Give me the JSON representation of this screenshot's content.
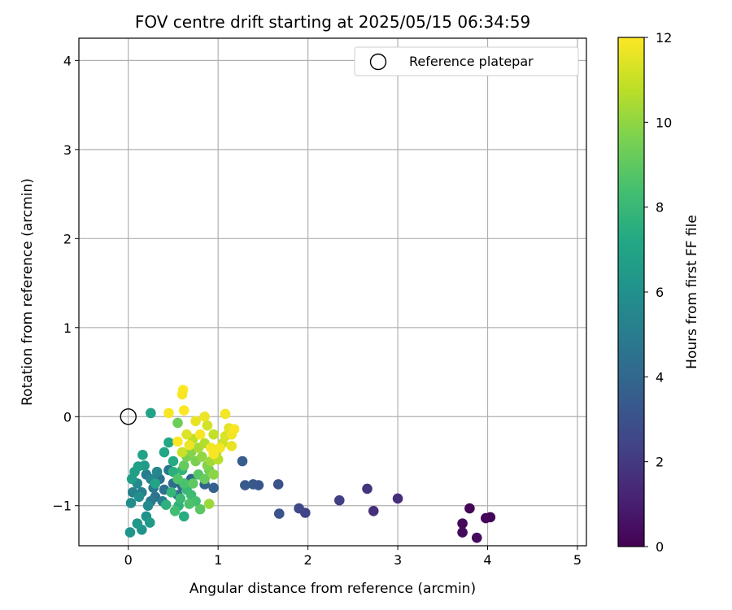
{
  "chart_data": {
    "type": "scatter",
    "title": "FOV centre drift starting at 2025/05/15 06:34:59",
    "xlabel": "Angular distance from reference (arcmin)",
    "ylabel": "Rotation from reference (arcmin)",
    "xlim": [
      -0.55,
      5.1
    ],
    "ylim": [
      -1.45,
      4.25
    ],
    "xticks": [
      "0",
      "1",
      "2",
      "3",
      "4",
      "5"
    ],
    "yticks": [
      "−1",
      "0",
      "1",
      "2",
      "3",
      "4"
    ],
    "grid": true,
    "legend": {
      "position": "top-right",
      "entries": [
        "Reference platepar"
      ]
    },
    "reference_point": {
      "x": 0,
      "y": 0,
      "label": "Reference platepar"
    },
    "colorbar": {
      "label": "Hours from first FF file",
      "colormap": "viridis",
      "range": [
        0,
        12
      ],
      "ticks": [
        "0",
        "2",
        "4",
        "6",
        "8",
        "10",
        "12"
      ]
    },
    "points": [
      {
        "x": 3.8,
        "y": -1.03,
        "hours": 0.1
      },
      {
        "x": 4.03,
        "y": -1.13,
        "hours": 0.15
      },
      {
        "x": 3.98,
        "y": -1.14,
        "hours": 0.2
      },
      {
        "x": 3.72,
        "y": -1.2,
        "hours": 0.25
      },
      {
        "x": 3.72,
        "y": -1.3,
        "hours": 0.3
      },
      {
        "x": 3.88,
        "y": -1.36,
        "hours": 0.35
      },
      {
        "x": 3.0,
        "y": -0.92,
        "hours": 1.5
      },
      {
        "x": 2.73,
        "y": -1.06,
        "hours": 1.6
      },
      {
        "x": 2.66,
        "y": -0.81,
        "hours": 1.8
      },
      {
        "x": 2.35,
        "y": -0.94,
        "hours": 2.2
      },
      {
        "x": 1.97,
        "y": -1.08,
        "hours": 2.4
      },
      {
        "x": 1.9,
        "y": -1.03,
        "hours": 2.6
      },
      {
        "x": 1.67,
        "y": -0.76,
        "hours": 3.0
      },
      {
        "x": 1.68,
        "y": -1.09,
        "hours": 3.1
      },
      {
        "x": 1.45,
        "y": -0.77,
        "hours": 3.2
      },
      {
        "x": 1.39,
        "y": -0.76,
        "hours": 3.3
      },
      {
        "x": 1.3,
        "y": -0.77,
        "hours": 3.4
      },
      {
        "x": 1.27,
        "y": -0.5,
        "hours": 3.5
      },
      {
        "x": 0.95,
        "y": -0.8,
        "hours": 3.7
      },
      {
        "x": 0.85,
        "y": -0.76,
        "hours": 3.8
      },
      {
        "x": 0.7,
        "y": -0.7,
        "hours": 4.0
      },
      {
        "x": 0.6,
        "y": -0.78,
        "hours": 4.1
      },
      {
        "x": 0.5,
        "y": -0.75,
        "hours": 4.2
      },
      {
        "x": 0.55,
        "y": -0.88,
        "hours": 4.3
      },
      {
        "x": 0.4,
        "y": -0.82,
        "hours": 4.4
      },
      {
        "x": 0.35,
        "y": -0.7,
        "hours": 4.5
      },
      {
        "x": 0.3,
        "y": -0.9,
        "hours": 4.6
      },
      {
        "x": 0.45,
        "y": -0.6,
        "hours": 4.7
      },
      {
        "x": 0.28,
        "y": -0.8,
        "hours": 4.8
      },
      {
        "x": 0.25,
        "y": -0.95,
        "hours": 4.9
      },
      {
        "x": 0.2,
        "y": -0.65,
        "hours": 5.0
      },
      {
        "x": 0.38,
        "y": -0.95,
        "hours": 5.1
      },
      {
        "x": 0.15,
        "y": -0.85,
        "hours": 5.2
      },
      {
        "x": 0.05,
        "y": -0.85,
        "hours": 5.3
      },
      {
        "x": 0.25,
        "y": -0.7,
        "hours": 5.4
      },
      {
        "x": 0.32,
        "y": -0.62,
        "hours": 5.5
      },
      {
        "x": 0.1,
        "y": -0.75,
        "hours": 5.6
      },
      {
        "x": 0.22,
        "y": -1.0,
        "hours": 5.7
      },
      {
        "x": 0.03,
        "y": -0.97,
        "hours": 5.8
      },
      {
        "x": 0.12,
        "y": -0.9,
        "hours": 5.9
      },
      {
        "x": 0.2,
        "y": -1.12,
        "hours": 6.0
      },
      {
        "x": 0.15,
        "y": -1.27,
        "hours": 6.1
      },
      {
        "x": 0.02,
        "y": -1.3,
        "hours": 6.2
      },
      {
        "x": 0.1,
        "y": -1.2,
        "hours": 6.3
      },
      {
        "x": 0.24,
        "y": -1.19,
        "hours": 6.4
      },
      {
        "x": 0.18,
        "y": -0.55,
        "hours": 6.5
      },
      {
        "x": 0.04,
        "y": -0.7,
        "hours": 6.6
      },
      {
        "x": 0.07,
        "y": -0.62,
        "hours": 6.7
      },
      {
        "x": 0.11,
        "y": -0.56,
        "hours": 6.8
      },
      {
        "x": 0.16,
        "y": -0.43,
        "hours": 6.9
      },
      {
        "x": 0.25,
        "y": 0.04,
        "hours": 6.9
      },
      {
        "x": 0.3,
        "y": -0.75,
        "hours": 7.0
      },
      {
        "x": 0.4,
        "y": -0.4,
        "hours": 7.1
      },
      {
        "x": 0.45,
        "y": -0.29,
        "hours": 7.2
      },
      {
        "x": 0.5,
        "y": -0.5,
        "hours": 7.3
      },
      {
        "x": 0.62,
        "y": -1.12,
        "hours": 7.4
      },
      {
        "x": 0.5,
        "y": -0.62,
        "hours": 7.5
      },
      {
        "x": 0.42,
        "y": -0.99,
        "hours": 7.6
      },
      {
        "x": 0.56,
        "y": -1.0,
        "hours": 7.7
      },
      {
        "x": 0.6,
        "y": -0.6,
        "hours": 7.8
      },
      {
        "x": 0.48,
        "y": -0.85,
        "hours": 7.9
      },
      {
        "x": 0.65,
        "y": -0.82,
        "hours": 8.0
      },
      {
        "x": 0.58,
        "y": -0.92,
        "hours": 8.1
      },
      {
        "x": 0.7,
        "y": -0.88,
        "hours": 8.2
      },
      {
        "x": 0.52,
        "y": -1.06,
        "hours": 8.3
      },
      {
        "x": 0.75,
        "y": -0.95,
        "hours": 8.4
      },
      {
        "x": 0.62,
        "y": -0.75,
        "hours": 8.5
      },
      {
        "x": 0.68,
        "y": -0.98,
        "hours": 8.6
      },
      {
        "x": 0.55,
        "y": -0.7,
        "hours": 8.7
      },
      {
        "x": 0.78,
        "y": -0.65,
        "hours": 8.8
      },
      {
        "x": 0.8,
        "y": -1.04,
        "hours": 8.9
      },
      {
        "x": 0.72,
        "y": -0.75,
        "hours": 9.0
      },
      {
        "x": 0.62,
        "y": -0.55,
        "hours": 9.1
      },
      {
        "x": 0.85,
        "y": -0.7,
        "hours": 9.2
      },
      {
        "x": 0.55,
        "y": -0.07,
        "hours": 9.3
      },
      {
        "x": 0.9,
        "y": -0.6,
        "hours": 9.4
      },
      {
        "x": 0.65,
        "y": -0.45,
        "hours": 9.5
      },
      {
        "x": 0.75,
        "y": -0.5,
        "hours": 9.6
      },
      {
        "x": 0.88,
        "y": -0.55,
        "hours": 9.7
      },
      {
        "x": 0.7,
        "y": -0.4,
        "hours": 9.8
      },
      {
        "x": 0.95,
        "y": -0.65,
        "hours": 9.9
      },
      {
        "x": 0.82,
        "y": -0.45,
        "hours": 10.0
      },
      {
        "x": 0.9,
        "y": -0.98,
        "hours": 10.2
      },
      {
        "x": 0.92,
        "y": -0.5,
        "hours": 10.3
      },
      {
        "x": 0.78,
        "y": -0.35,
        "hours": 10.4
      },
      {
        "x": 0.98,
        "y": -0.4,
        "hours": 10.5
      },
      {
        "x": 0.85,
        "y": -0.3,
        "hours": 10.6
      },
      {
        "x": 1.0,
        "y": -0.48,
        "hours": 10.7
      },
      {
        "x": 0.72,
        "y": -0.25,
        "hours": 10.8
      },
      {
        "x": 0.95,
        "y": -0.2,
        "hours": 10.9
      },
      {
        "x": 0.6,
        "y": -0.4,
        "hours": 11.0
      },
      {
        "x": 1.05,
        "y": -0.3,
        "hours": 11.1
      },
      {
        "x": 0.88,
        "y": -0.1,
        "hours": 11.2
      },
      {
        "x": 1.08,
        "y": -0.22,
        "hours": 11.3
      },
      {
        "x": 0.65,
        "y": -0.2,
        "hours": 11.4
      },
      {
        "x": 1.12,
        "y": -0.13,
        "hours": 11.5
      },
      {
        "x": 0.75,
        "y": -0.05,
        "hours": 11.6
      },
      {
        "x": 1.15,
        "y": -0.2,
        "hours": 11.7
      },
      {
        "x": 0.92,
        "y": -0.35,
        "hours": 11.8
      },
      {
        "x": 1.18,
        "y": -0.14,
        "hours": 11.9
      },
      {
        "x": 0.55,
        "y": -0.28,
        "hours": 12.0
      },
      {
        "x": 0.62,
        "y": 0.07,
        "hours": 12.0
      },
      {
        "x": 0.61,
        "y": 0.3,
        "hours": 12.0
      },
      {
        "x": 0.6,
        "y": 0.25,
        "hours": 11.9
      },
      {
        "x": 0.45,
        "y": 0.04,
        "hours": 11.9
      },
      {
        "x": 1.08,
        "y": 0.03,
        "hours": 11.8
      },
      {
        "x": 0.85,
        "y": 0.0,
        "hours": 11.7
      },
      {
        "x": 1.15,
        "y": -0.33,
        "hours": 11.6
      },
      {
        "x": 1.02,
        "y": -0.35,
        "hours": 11.8
      },
      {
        "x": 0.95,
        "y": -0.42,
        "hours": 11.9
      },
      {
        "x": 0.8,
        "y": -0.2,
        "hours": 11.9
      },
      {
        "x": 0.68,
        "y": -0.32,
        "hours": 11.7
      }
    ]
  }
}
